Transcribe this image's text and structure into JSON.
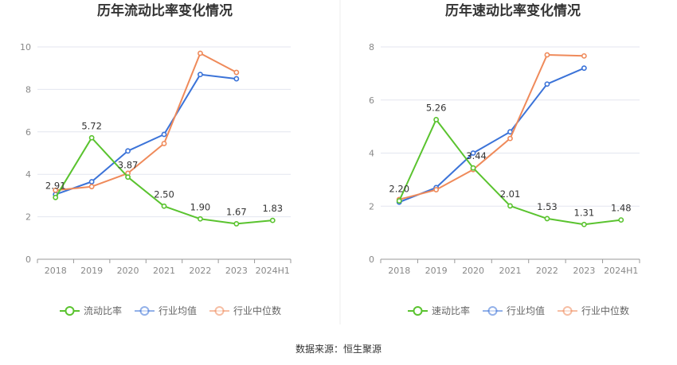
{
  "source_text": "数据来源：恒生聚源",
  "colors": {
    "company": "#5ac32f",
    "industry_avg": "#3b73d8",
    "industry_median": "#ef8a5a",
    "grid": "#e3e6ef",
    "axis": "#999999"
  },
  "chart_data": [
    {
      "type": "line",
      "title": "历年流动比率变化情况",
      "categories": [
        "2018",
        "2019",
        "2020",
        "2021",
        "2022",
        "2023",
        "2024H1"
      ],
      "ylim": [
        0,
        10
      ],
      "yticks": [
        0,
        2,
        4,
        6,
        8,
        10
      ],
      "grid": true,
      "legend_position": "bottom",
      "series": [
        {
          "name": "流动比率",
          "color_key": "company",
          "values": [
            2.91,
            5.72,
            3.87,
            2.5,
            1.9,
            1.67,
            1.83
          ],
          "labels": [
            "2.91",
            "5.72",
            "3.87",
            "2.50",
            "1.90",
            "1.67",
            "1.83"
          ]
        },
        {
          "name": "行业均值",
          "color_key": "industry_avg",
          "values": [
            3.05,
            3.65,
            5.1,
            5.88,
            8.7,
            8.5,
            null
          ]
        },
        {
          "name": "行业中位数",
          "color_key": "industry_median",
          "values": [
            3.25,
            3.42,
            4.05,
            5.45,
            9.7,
            8.8,
            null
          ]
        }
      ]
    },
    {
      "type": "line",
      "title": "历年速动比率变化情况",
      "categories": [
        "2018",
        "2019",
        "2020",
        "2021",
        "2022",
        "2023",
        "2024H1"
      ],
      "ylim": [
        0,
        8
      ],
      "yticks": [
        0,
        2,
        4,
        6,
        8
      ],
      "grid": true,
      "legend_position": "bottom",
      "series": [
        {
          "name": "速动比率",
          "color_key": "company",
          "values": [
            2.2,
            5.26,
            3.44,
            2.01,
            1.53,
            1.31,
            1.48
          ],
          "labels": [
            "2.20",
            "5.26",
            "3.44",
            "2.01",
            "1.53",
            "1.31",
            "1.48"
          ]
        },
        {
          "name": "行业均值",
          "color_key": "industry_avg",
          "values": [
            2.15,
            2.7,
            4.0,
            4.8,
            6.6,
            7.2,
            null
          ]
        },
        {
          "name": "行业中位数",
          "color_key": "industry_median",
          "values": [
            2.25,
            2.62,
            3.38,
            4.55,
            7.7,
            7.66,
            null
          ]
        }
      ]
    }
  ]
}
